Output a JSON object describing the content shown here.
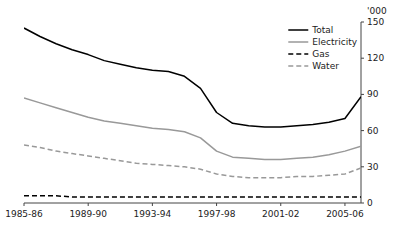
{
  "chart_data": {
    "type": "line",
    "ylabel": "'000",
    "x": [
      0,
      1,
      2,
      3,
      4,
      5,
      6,
      7,
      8,
      9,
      10,
      11,
      12,
      13,
      14,
      15,
      16,
      17,
      18,
      19,
      20,
      21
    ],
    "xlim": [
      0,
      21
    ],
    "xticks": [
      {
        "value": 0,
        "label": "1985-86"
      },
      {
        "value": 4,
        "label": "1989-90"
      },
      {
        "value": 8,
        "label": "1993-94"
      },
      {
        "value": 12,
        "label": "1997-98"
      },
      {
        "value": 16,
        "label": "2001-02"
      },
      {
        "value": 20,
        "label": "2005-06"
      }
    ],
    "ylim": [
      0,
      150
    ],
    "yticks": [
      0,
      30,
      60,
      90,
      120,
      150
    ],
    "grid": false,
    "legend": "upper right",
    "series": [
      {
        "name": "Total",
        "color": "#000000",
        "line_style": "solid",
        "values": [
          145,
          138,
          132,
          127,
          123,
          118,
          115,
          112,
          110,
          109,
          105,
          95,
          75,
          66,
          64,
          63,
          63,
          64,
          65,
          67,
          70,
          88
        ]
      },
      {
        "name": "Electricity",
        "color": "#999999",
        "line_style": "solid",
        "values": [
          87,
          83,
          79,
          75,
          71,
          68,
          66,
          64,
          62,
          61,
          59,
          54,
          43,
          38,
          37,
          36,
          36,
          37,
          38,
          40,
          43,
          47
        ]
      },
      {
        "name": "Gas",
        "color": "#000000",
        "line_style": "dashed",
        "values": [
          6,
          6,
          6,
          5,
          5,
          5,
          5,
          5,
          5,
          5,
          5,
          5,
          5,
          5,
          5,
          5,
          5,
          5,
          5,
          5,
          5,
          5
        ]
      },
      {
        "name": "Water",
        "color": "#999999",
        "line_style": "dashed",
        "values": [
          48,
          46,
          43,
          41,
          39,
          37,
          35,
          33,
          32,
          31,
          30,
          28,
          24,
          22,
          21,
          21,
          21,
          22,
          22,
          23,
          24,
          29
        ]
      }
    ]
  }
}
